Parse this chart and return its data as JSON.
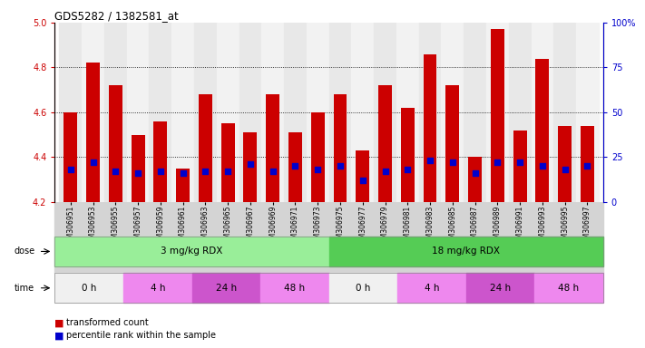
{
  "title": "GDS5282 / 1382581_at",
  "samples": [
    "GSM306951",
    "GSM306953",
    "GSM306955",
    "GSM306957",
    "GSM306959",
    "GSM306961",
    "GSM306963",
    "GSM306965",
    "GSM306967",
    "GSM306969",
    "GSM306971",
    "GSM306973",
    "GSM306975",
    "GSM306977",
    "GSM306979",
    "GSM306981",
    "GSM306983",
    "GSM306985",
    "GSM306987",
    "GSM306989",
    "GSM306991",
    "GSM306993",
    "GSM306995",
    "GSM306997"
  ],
  "bar_values": [
    4.6,
    4.82,
    4.72,
    4.5,
    4.56,
    4.35,
    4.68,
    4.55,
    4.51,
    4.68,
    4.51,
    4.6,
    4.68,
    4.43,
    4.72,
    4.62,
    4.86,
    4.72,
    4.4,
    4.97,
    4.52,
    4.84,
    4.54,
    4.54
  ],
  "percentile_values": [
    18,
    22,
    17,
    16,
    17,
    16,
    17,
    17,
    21,
    17,
    20,
    18,
    20,
    12,
    17,
    18,
    23,
    22,
    16,
    22,
    22,
    20,
    18,
    20
  ],
  "ylim_left": [
    4.2,
    5.0
  ],
  "ylim_right": [
    0,
    100
  ],
  "yticks_left": [
    4.2,
    4.4,
    4.6,
    4.8,
    5.0
  ],
  "yticks_right": [
    0,
    25,
    50,
    75,
    100
  ],
  "bar_color": "#cc0000",
  "dot_color": "#0000cc",
  "bar_width": 0.6,
  "dose_groups": [
    {
      "text": "3 mg/kg RDX",
      "start": 0,
      "end": 12,
      "color": "#99ee99"
    },
    {
      "text": "18 mg/kg RDX",
      "start": 12,
      "end": 24,
      "color": "#55cc55"
    }
  ],
  "time_groups": [
    {
      "text": "0 h",
      "start": 0,
      "end": 3,
      "color": "#f0f0f0"
    },
    {
      "text": "4 h",
      "start": 3,
      "end": 6,
      "color": "#ee88ee"
    },
    {
      "text": "24 h",
      "start": 6,
      "end": 9,
      "color": "#cc55cc"
    },
    {
      "text": "48 h",
      "start": 9,
      "end": 12,
      "color": "#ee88ee"
    },
    {
      "text": "0 h",
      "start": 12,
      "end": 15,
      "color": "#f0f0f0"
    },
    {
      "text": "4 h",
      "start": 15,
      "end": 18,
      "color": "#ee88ee"
    },
    {
      "text": "24 h",
      "start": 18,
      "end": 21,
      "color": "#cc55cc"
    },
    {
      "text": "48 h",
      "start": 21,
      "end": 24,
      "color": "#ee88ee"
    }
  ],
  "legend_items": [
    {
      "label": "transformed count",
      "color": "#cc0000"
    },
    {
      "label": "percentile rank within the sample",
      "color": "#0000cc"
    }
  ],
  "left_color": "#cc0000",
  "right_color": "#0000cc"
}
